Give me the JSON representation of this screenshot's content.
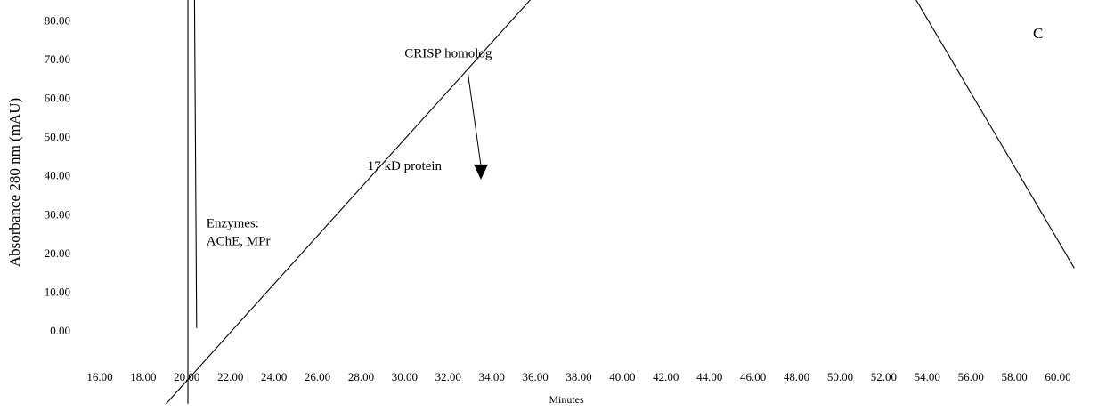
{
  "chart_data": {
    "type": "line",
    "title": "",
    "panel_label": "C",
    "xlabel": "Minutes",
    "ylabel": "Absorbance 280 nm (mAU)",
    "xlim": [
      15,
      61
    ],
    "ylim": [
      -19,
      86
    ],
    "x_ticks": [
      "16.00",
      "18.00",
      "20.00",
      "22.00",
      "24.00",
      "26.00",
      "28.00",
      "30.00",
      "32.00",
      "34.00",
      "36.00",
      "38.00",
      "40.00",
      "42.00",
      "44.00",
      "46.00",
      "48.00",
      "50.00",
      "52.00",
      "54.00",
      "56.00",
      "58.00",
      "60.00"
    ],
    "x_tick_values": [
      16,
      18,
      20,
      22,
      24,
      26,
      28,
      30,
      32,
      34,
      36,
      38,
      40,
      42,
      44,
      46,
      48,
      50,
      52,
      54,
      56,
      58,
      60
    ],
    "y_ticks": [
      "0.00",
      "10.00",
      "20.00",
      "30.00",
      "40.00",
      "50.00",
      "60.00",
      "70.00",
      "80.00"
    ],
    "y_tick_values": [
      0,
      10,
      20,
      30,
      40,
      50,
      60,
      70,
      80
    ],
    "grid": false,
    "series": [
      {
        "values": [
          [
            20.05,
            86
          ],
          [
            20.05,
            -19
          ]
        ]
      },
      {
        "values": [
          [
            20.35,
            86
          ],
          [
            20.45,
            0.5
          ]
        ]
      },
      {
        "values": [
          [
            19.05,
            -19
          ],
          [
            35.9,
            86
          ]
        ]
      },
      {
        "values": [
          [
            53.4,
            86
          ],
          [
            60.75,
            16
          ]
        ]
      }
    ],
    "annotations": [
      {
        "text": "CRISP homolog",
        "x": 32.0,
        "y": 70.3,
        "arrow_from": [
          32.9,
          66.5
        ],
        "arrow_to": [
          33.5,
          38.8
        ]
      },
      {
        "text": "17 kD protein",
        "x": 30.0,
        "y": 41.3
      },
      {
        "lines": [
          "Enzymes:",
          "AChE, MPr"
        ],
        "x": 20.9,
        "y": 26.5
      }
    ]
  }
}
